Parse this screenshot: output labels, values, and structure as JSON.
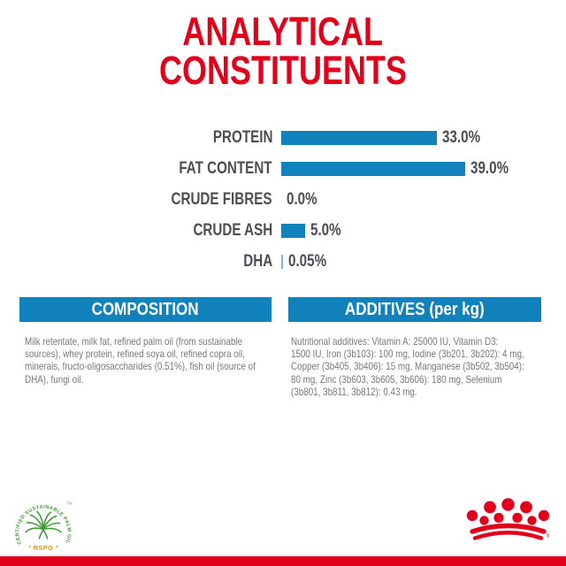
{
  "title": {
    "line1": "ANALYTICAL",
    "line2": "CONSTITUENTS"
  },
  "chart_data": {
    "type": "bar",
    "orientation": "horizontal",
    "title": "ANALYTICAL CONSTITUENTS",
    "categories": [
      "PROTEIN",
      "FAT CONTENT",
      "CRUDE FIBRES",
      "CRUDE ASH",
      "DHA"
    ],
    "values": [
      33.0,
      39.0,
      0.0,
      5.0,
      0.05
    ],
    "value_labels": [
      "33.0%",
      "39.0%",
      "0.0%",
      "5.0%",
      "0.05%"
    ],
    "unit": "%",
    "xlim": [
      0,
      45
    ],
    "grid": false,
    "legend": false,
    "bar_color": "#1182bb"
  },
  "sections": {
    "composition": {
      "header": "COMPOSITION",
      "body": "Milk retentate, milk fat, refined palm oil (from sustainable\nsources), whey protein, refined soya oil, refined copra oil,\nminerals, fructo-oligosaccharides (0.51%), fish oil (source of\nDHA), fungi oil."
    },
    "additives": {
      "header": "ADDITIVES (per kg)",
      "body": "Nutritional additives: Vitamin A: 25000 IU, Vitamin D3:\n1500 IU, Iron (3b103): 100 mg, Iodine (3b201, 3b202): 4 mg,\nCopper (3b405, 3b406): 15 mg, Manganese (3b502, 3b504):\n80 mg, Zinc (3b603, 3b605, 3b606): 180 mg, Selenium\n(3b801, 3b811, 3b812): 0.43 mg."
    }
  },
  "footer": {
    "rspo_logo": {
      "circle_text": "CERTIFIED SUSTAINABLE PALM OIL",
      "label": "RSPO",
      "trademark": "TM"
    },
    "brand_logo": {
      "registered": "®"
    }
  },
  "colors": {
    "brand_red": "#e2001a",
    "bar_blue": "#1182bb",
    "label_gray": "#4d4e53",
    "body_gray": "#77787b",
    "rspo_green": "#3f9c35",
    "rspo_orange": "#f18a00"
  }
}
